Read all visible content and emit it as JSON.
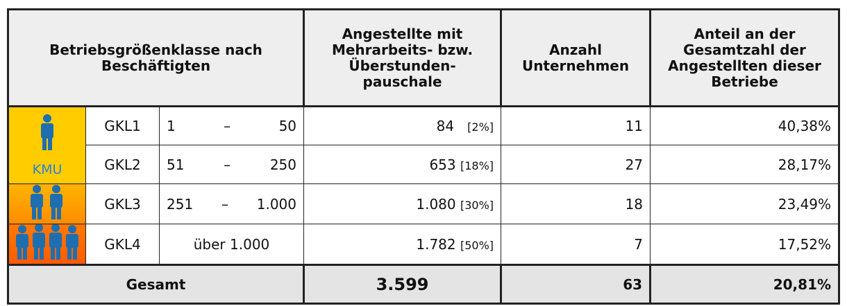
{
  "header": {
    "group": "Betriebsgrößenklasse nach Beschäftigten",
    "employees": "Angestellte mit Mehrarbeits- bzw. Überstunden-pauschale",
    "companies": "Anzahl Unternehmen",
    "share": "Anteil an der Gesamtzahl der Angestellten dieser Betriebe"
  },
  "icon_label": "KMU",
  "rows": [
    {
      "class": "GKL1",
      "from": "1",
      "sep": "–",
      "to": "50",
      "employees": "84",
      "employees_share": "[2%]",
      "companies": "11",
      "share": "40,38%"
    },
    {
      "class": "GKL2",
      "from": "51",
      "sep": "–",
      "to": "250",
      "employees": "653",
      "employees_share": "[18%]",
      "companies": "27",
      "share": "28,17%"
    },
    {
      "class": "GKL3",
      "from": "251",
      "sep": "–",
      "to": "1.000",
      "employees": "1.080",
      "employees_share": "[30%]",
      "companies": "18",
      "share": "23,49%"
    },
    {
      "class": "GKL4",
      "range": "über 1.000",
      "employees": "1.782",
      "employees_share": "[50%]",
      "companies": "7",
      "share": "17,52%"
    }
  ],
  "total": {
    "label": "Gesamt",
    "employees": "3.599",
    "companies": "63",
    "share": "20,81%"
  }
}
